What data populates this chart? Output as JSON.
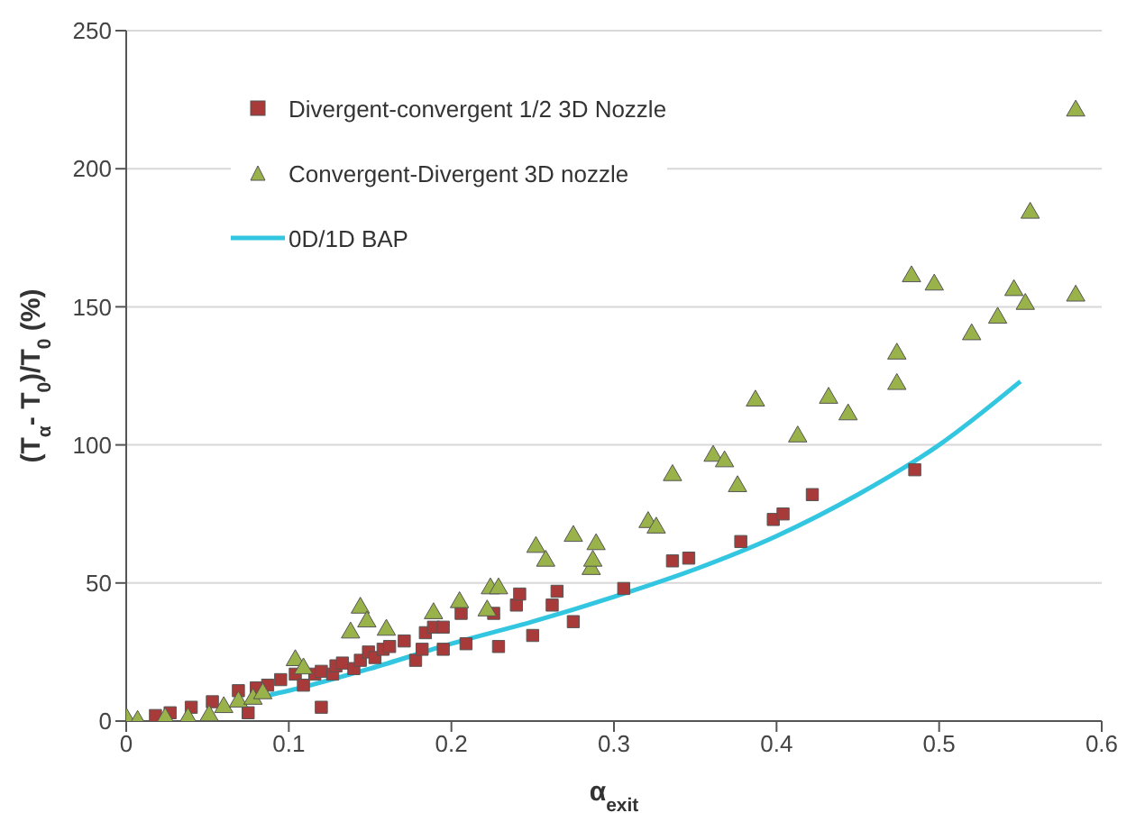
{
  "chart_data": {
    "type": "scatter",
    "xlabel": "α$_{exit}$",
    "ylabel": "(T$_{α}$- T$_{0}$)/T$_{0}$ (%)",
    "xlim": [
      0,
      0.6
    ],
    "xticks": [
      0,
      0.1,
      0.2,
      0.3,
      0.4,
      0.5,
      0.6
    ],
    "ylim": [
      0,
      250
    ],
    "yticks": [
      0,
      50,
      100,
      150,
      200,
      250
    ],
    "grid": "y",
    "legend": "top left",
    "series": [
      {
        "name": "Divergent-convergent 1/2 3D Nozzle",
        "marker": "square",
        "color": "#a83a3a",
        "x": [
          0.018,
          0.027,
          0.04,
          0.053,
          0.069,
          0.075,
          0.08,
          0.087,
          0.095,
          0.104,
          0.109,
          0.116,
          0.12,
          0.12,
          0.127,
          0.129,
          0.133,
          0.14,
          0.144,
          0.149,
          0.153,
          0.158,
          0.162,
          0.171,
          0.178,
          0.182,
          0.184,
          0.189,
          0.195,
          0.195,
          0.206,
          0.209,
          0.226,
          0.229,
          0.24,
          0.242,
          0.25,
          0.262,
          0.265,
          0.275,
          0.306,
          0.336,
          0.346,
          0.378,
          0.398,
          0.404,
          0.422,
          0.485
        ],
        "values": [
          2,
          3,
          5,
          7,
          11,
          3,
          12,
          13,
          15,
          17,
          13,
          17,
          5,
          18,
          17,
          20,
          21,
          19,
          22,
          25,
          23,
          26,
          27,
          29,
          22,
          26,
          32,
          34,
          34,
          26,
          39,
          28,
          39,
          27,
          42,
          46,
          31,
          42,
          47,
          36,
          48,
          58,
          59,
          65,
          73,
          75,
          82,
          91
        ]
      },
      {
        "name": "Convergent-Divergent 3D nozzle",
        "marker": "triangle",
        "color": "#9ab24a",
        "x": [
          0,
          0.007,
          0.024,
          0.038,
          0.051,
          0.06,
          0.069,
          0.078,
          0.084,
          0.104,
          0.109,
          0.138,
          0.144,
          0.148,
          0.16,
          0.189,
          0.205,
          0.222,
          0.224,
          0.229,
          0.252,
          0.258,
          0.275,
          0.286,
          0.287,
          0.289,
          0.321,
          0.326,
          0.336,
          0.361,
          0.368,
          0.376,
          0.387,
          0.413,
          0.432,
          0.444,
          0.474,
          0.474,
          0.483,
          0.497,
          0.52,
          0.536,
          0.546,
          0.553,
          0.556,
          0.584,
          0.584
        ],
        "values": [
          1,
          0,
          1,
          1,
          2,
          5,
          7,
          8,
          10,
          22,
          19,
          32,
          41,
          36,
          33,
          39,
          43,
          40,
          48,
          48,
          63,
          58,
          67,
          55,
          58,
          64,
          72,
          70,
          89,
          96,
          94,
          85,
          116,
          103,
          117,
          111,
          122,
          133,
          161,
          158,
          140,
          146,
          156,
          151,
          184,
          221,
          154
        ]
      },
      {
        "name": "0D/1D BAP",
        "type": "line",
        "marker": "none",
        "color": "#33c6e0",
        "x": [
          0.085,
          0.1,
          0.15,
          0.2,
          0.25,
          0.3,
          0.35,
          0.4,
          0.45,
          0.5,
          0.55
        ],
        "values": [
          9,
          11,
          19,
          28,
          36,
          45,
          55,
          67,
          82,
          100,
          123
        ]
      }
    ]
  }
}
